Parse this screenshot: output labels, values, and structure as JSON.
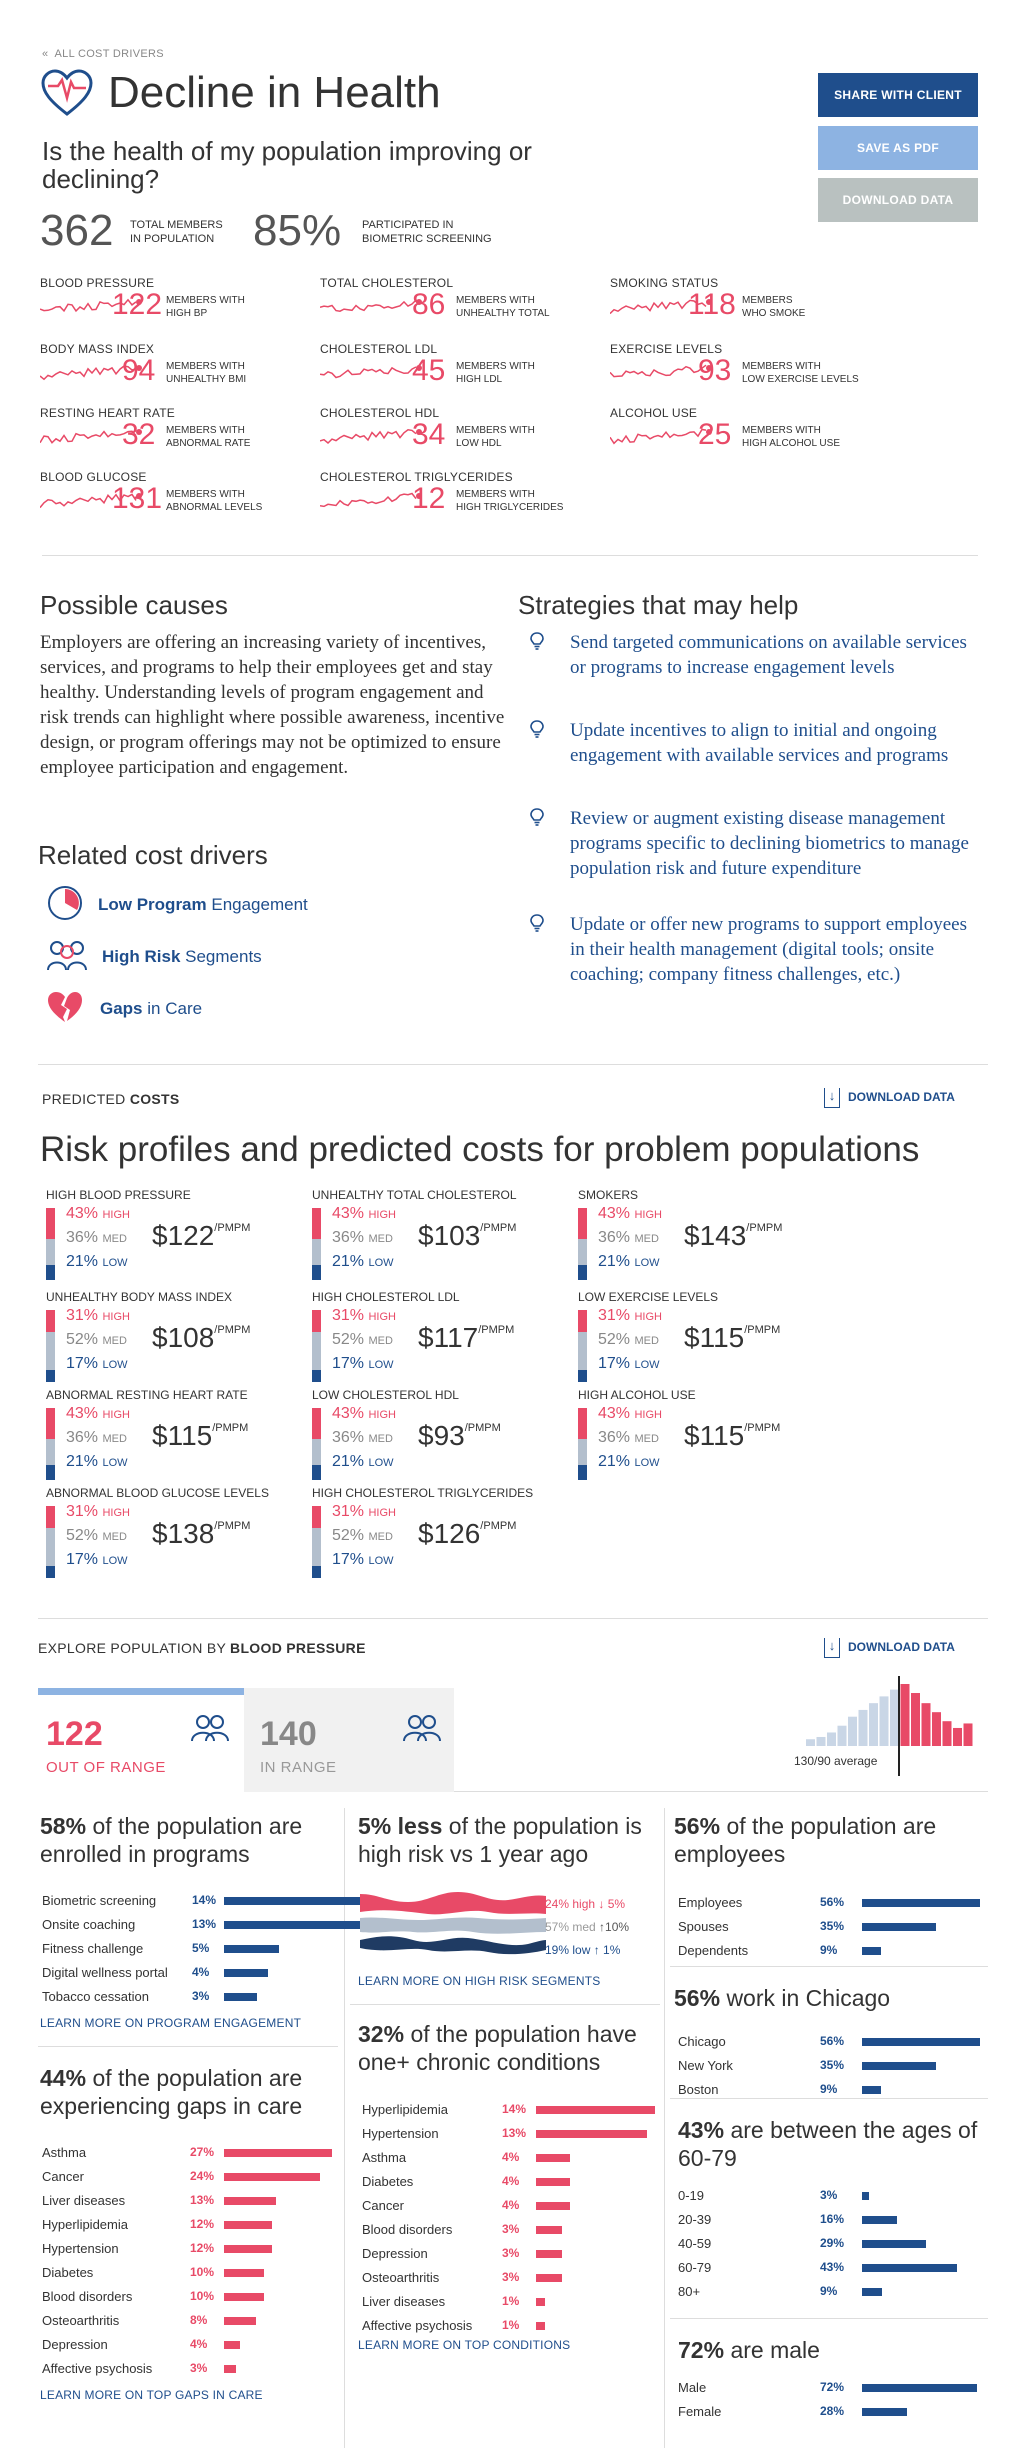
{
  "header": {
    "back": "ALL COST DRIVERS",
    "title": "Decline in Health",
    "question": "Is the health of my population improving or declining?",
    "total_num": "362",
    "total_lbl1": "TOTAL MEMBERS",
    "total_lbl2": "IN POPULATION",
    "pct_num": "85%",
    "pct_lbl1": "PARTICIPATED IN",
    "pct_lbl2": "BIOMETRIC SCREENING"
  },
  "buttons": {
    "share": "SHARE WITH CLIENT",
    "pdf": "SAVE AS PDF",
    "download": "DOWNLOAD DATA"
  },
  "colors": {
    "red": "#e84a67",
    "blue": "#1f4e8c",
    "light_blue": "#8db3e2",
    "grey_btn": "#b9c1c0"
  },
  "metrics": [
    {
      "label": "BLOOD PRESSURE",
      "value": "122",
      "d1": "MEMBERS WITH",
      "d2": "HIGH BP"
    },
    {
      "label": "TOTAL CHOLESTEROL",
      "value": "86",
      "d1": "MEMBERS WITH",
      "d2": "UNHEALTHY TOTAL"
    },
    {
      "label": "SMOKING STATUS",
      "value": "118",
      "d1": "MEMBERS",
      "d2": "WHO SMOKE"
    },
    {
      "label": "BODY MASS INDEX",
      "value": "94",
      "d1": "MEMBERS WITH",
      "d2": "UNHEALTHY BMI"
    },
    {
      "label": "CHOLESTEROL LDL",
      "value": "45",
      "d1": "MEMBERS WITH",
      "d2": "HIGH LDL"
    },
    {
      "label": "EXERCISE LEVELS",
      "value": "93",
      "d1": "MEMBERS WITH",
      "d2": "LOW EXERCISE LEVELS"
    },
    {
      "label": "RESTING HEART RATE",
      "value": "32",
      "d1": "MEMBERS WITH",
      "d2": "ABNORMAL RATE"
    },
    {
      "label": "CHOLESTEROL HDL",
      "value": "34",
      "d1": "MEMBERS WITH",
      "d2": "LOW HDL"
    },
    {
      "label": "ALCOHOL USE",
      "value": "25",
      "d1": "MEMBERS WITH",
      "d2": "HIGH ALCOHOL USE"
    },
    {
      "label": "BLOOD GLUCOSE",
      "value": "131",
      "d1": "MEMBERS WITH",
      "d2": "ABNORMAL LEVELS"
    },
    {
      "label": "CHOLESTEROL TRIGLYCERIDES",
      "value": "12",
      "d1": "MEMBERS WITH",
      "d2": "HIGH TRIGLYCERIDES"
    }
  ],
  "causes": {
    "title": "Possible causes",
    "text": "Employers are offering an increasing variety of incentives, services, and programs to help their employees get and stay healthy. Understanding levels of program engagement and risk trends can highlight where possible awareness, incentive design, or program offerings may not be optimized to ensure employee participation and engagement."
  },
  "related": {
    "title": "Related cost drivers",
    "items": [
      {
        "bold": "Low Program",
        "rest": "Engagement"
      },
      {
        "bold": "High Risk",
        "rest": "Segments"
      },
      {
        "bold": "Gaps",
        "rest": "in Care"
      }
    ]
  },
  "strategies": {
    "title": "Strategies that may help",
    "items": [
      "Send targeted communications on available services or programs to increase engagement levels",
      "Update incentives to align to initial and ongoing engagement with available services and programs",
      "Review or augment existing disease management programs specific to declining biometrics to manage population risk and future expenditure",
      "Update or offer new programs to support employees in their health management (digital tools; onsite coaching; company fitness challenges, etc.)"
    ]
  },
  "costs": {
    "kicker": "PREDICTED",
    "kicker_bold": "COSTS",
    "download": "DOWNLOAD DATA",
    "title": "Risk profiles and predicted costs for problem populations",
    "high": "HIGH",
    "med": "MED",
    "low": "LOW",
    "unit": "/PMPM",
    "cards": [
      {
        "title": "HIGH BLOOD PRESSURE",
        "high": "43%",
        "med": "36%",
        "low": "21%",
        "cost": "$122"
      },
      {
        "title": "UNHEALTHY TOTAL CHOLESTEROL",
        "high": "43%",
        "med": "36%",
        "low": "21%",
        "cost": "$103"
      },
      {
        "title": "SMOKERS",
        "high": "43%",
        "med": "36%",
        "low": "21%",
        "cost": "$143"
      },
      {
        "title": "UNHEALTHY BODY MASS INDEX",
        "high": "31%",
        "med": "52%",
        "low": "17%",
        "cost": "$108"
      },
      {
        "title": "HIGH CHOLESTEROL LDL",
        "high": "31%",
        "med": "52%",
        "low": "17%",
        "cost": "$117"
      },
      {
        "title": "LOW EXERCISE LEVELS",
        "high": "31%",
        "med": "52%",
        "low": "17%",
        "cost": "$115"
      },
      {
        "title": "ABNORMAL RESTING HEART RATE",
        "high": "43%",
        "med": "36%",
        "low": "21%",
        "cost": "$115"
      },
      {
        "title": "LOW CHOLESTEROL HDL",
        "high": "43%",
        "med": "36%",
        "low": "21%",
        "cost": "$93"
      },
      {
        "title": "HIGH ALCOHOL USE",
        "high": "43%",
        "med": "36%",
        "low": "21%",
        "cost": "$115"
      },
      {
        "title": "ABNORMAL BLOOD GLUCOSE LEVELS",
        "high": "31%",
        "med": "52%",
        "low": "17%",
        "cost": "$138"
      },
      {
        "title": "HIGH CHOLESTEROL TRIGLYCERIDES",
        "high": "31%",
        "med": "52%",
        "low": "17%",
        "cost": "$126"
      }
    ]
  },
  "explore": {
    "kicker": "EXPLORE POPULATION BY",
    "kicker_bold": "BLOOD PRESSURE",
    "download": "DOWNLOAD DATA",
    "out_num": "122",
    "out_lbl": "OUT OF RANGE",
    "in_num": "140",
    "in_lbl": "IN RANGE",
    "hist_label": "130/90 average",
    "hist_values": [
      6,
      8,
      12,
      18,
      26,
      32,
      38,
      44,
      50,
      55,
      47,
      38,
      30,
      22,
      16,
      20
    ]
  },
  "col1": {
    "programs": {
      "pct": "58%",
      "rest": "of the population are enrolled in programs",
      "link": "LEARN MORE ON PROGRAM ENGAGEMENT",
      "rows": [
        [
          "Biometric screening",
          "14%",
          14
        ],
        [
          "Onsite coaching",
          "13%",
          13
        ],
        [
          "Fitness challenge",
          "5%",
          5
        ],
        [
          "Digital wellness portal",
          "4%",
          4
        ],
        [
          "Tobacco cessation",
          "3%",
          3
        ]
      ]
    },
    "gaps": {
      "pct": "44%",
      "rest": "of the population are experiencing gaps in care",
      "link": "LEARN MORE ON TOP GAPS IN CARE",
      "rows": [
        [
          "Asthma",
          "27%",
          27
        ],
        [
          "Cancer",
          "24%",
          24
        ],
        [
          "Liver diseases",
          "13%",
          13
        ],
        [
          "Hyperlipidemia",
          "12%",
          12
        ],
        [
          "Hypertension",
          "12%",
          12
        ],
        [
          "Diabetes",
          "10%",
          10
        ],
        [
          "Blood disorders",
          "10%",
          10
        ],
        [
          "Osteoarthritis",
          "8%",
          8
        ],
        [
          "Depression",
          "4%",
          4
        ],
        [
          "Affective psychosis",
          "3%",
          3
        ]
      ]
    }
  },
  "col2": {
    "risk": {
      "pct": "5% less",
      "rest": "of the population is high risk vs 1 year ago",
      "high": "24% high",
      "high_chg": "↓ 5%",
      "med": "57% med",
      "med_chg": "↑10%",
      "low": "19% low",
      "low_chg": "↑ 1%",
      "link": "LEARN MORE ON HIGH RISK SEGMENTS"
    },
    "chronic": {
      "pct": "32%",
      "rest": "of the population have one+ chronic conditions",
      "link": "LEARN MORE ON TOP CONDITIONS",
      "rows": [
        [
          "Hyperlipidemia",
          "14%",
          14
        ],
        [
          "Hypertension",
          "13%",
          13
        ],
        [
          "Asthma",
          "4%",
          4
        ],
        [
          "Diabetes",
          "4%",
          4
        ],
        [
          "Cancer",
          "4%",
          4
        ],
        [
          "Blood disorders",
          "3%",
          3
        ],
        [
          "Depression",
          "3%",
          3
        ],
        [
          "Osteoarthritis",
          "3%",
          3
        ],
        [
          "Liver diseases",
          "1%",
          1
        ],
        [
          "Affective psychosis",
          "1%",
          1
        ]
      ]
    }
  },
  "col3": {
    "employees": {
      "pct": "56%",
      "rest": "of the population are employees",
      "rows": [
        [
          "Employees",
          "56%",
          56
        ],
        [
          "Spouses",
          "35%",
          35
        ],
        [
          "Dependents",
          "9%",
          9
        ]
      ]
    },
    "location": {
      "pct": "56%",
      "rest": "work in Chicago",
      "rows": [
        [
          "Chicago",
          "56%",
          56
        ],
        [
          "New York",
          "35%",
          35
        ],
        [
          "Boston",
          "9%",
          9
        ]
      ]
    },
    "ages": {
      "pct": "43%",
      "rest": "are between the ages of 60-79",
      "rows": [
        [
          "0-19",
          "3%",
          3
        ],
        [
          "20-39",
          "16%",
          16
        ],
        [
          "40-59",
          "29%",
          29
        ],
        [
          "60-79",
          "43%",
          43
        ],
        [
          "80+",
          "9%",
          9
        ]
      ]
    },
    "gender": {
      "pct": "72%",
      "rest": "are male",
      "rows": [
        [
          "Male",
          "72%",
          72
        ],
        [
          "Female",
          "28%",
          28
        ]
      ]
    }
  }
}
